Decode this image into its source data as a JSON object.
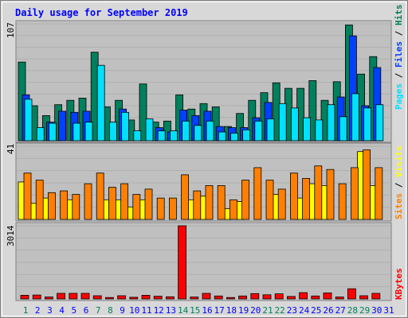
{
  "colors": {
    "hits": "#00805c",
    "files": "#0040ff",
    "pages": "#00e0ff",
    "visits": "#ffff00",
    "sites": "#ff8000",
    "kbytes": "#ff0000",
    "panel_bg": "#c0c0c0",
    "frame_bg": "#d8d8d8",
    "title": "#0000ff",
    "weekend_label": "#00805c",
    "weekday_label": "#0000ff"
  },
  "chart_data": [
    {
      "type": "bar",
      "title": "Daily usage for September 2019",
      "panel": "hits-files-pages",
      "ylim": [
        0,
        107
      ],
      "ymax_label": "107",
      "categories": [
        "1",
        "2",
        "3",
        "4",
        "5",
        "6",
        "7",
        "8",
        "9",
        "10",
        "11",
        "12",
        "13",
        "14",
        "15",
        "16",
        "17",
        "18",
        "19",
        "20",
        "21",
        "22",
        "23",
        "24",
        "25",
        "26",
        "27",
        "28",
        "29",
        "30",
        "31"
      ],
      "series": [
        {
          "name": "Hits",
          "color": "hits",
          "values": [
            72,
            32,
            23,
            33,
            37,
            39,
            81,
            31,
            37,
            19,
            52,
            17,
            18,
            42,
            29,
            34,
            31,
            13,
            25,
            37,
            44,
            53,
            48,
            48,
            55,
            37,
            54,
            106,
            61,
            77,
            0
          ]
        },
        {
          "name": "Files",
          "color": "files",
          "values": [
            42,
            0,
            17,
            27,
            26,
            27,
            0,
            0,
            29,
            0,
            0,
            12,
            8,
            28,
            23,
            27,
            13,
            12,
            12,
            21,
            35,
            0,
            0,
            0,
            0,
            0,
            40,
            96,
            32,
            67,
            0
          ]
        },
        {
          "name": "Pages",
          "color": "pages",
          "values": [
            38,
            12,
            16,
            0,
            16,
            17,
            69,
            17,
            26,
            9,
            20,
            9,
            9,
            18,
            14,
            18,
            8,
            7,
            10,
            18,
            20,
            34,
            30,
            21,
            19,
            33,
            22,
            43,
            30,
            33,
            0
          ]
        }
      ]
    },
    {
      "type": "bar",
      "panel": "visits-sites",
      "ylim": [
        0,
        41
      ],
      "ymax_label": "41",
      "categories": [
        "1",
        "2",
        "3",
        "4",
        "5",
        "6",
        "7",
        "8",
        "9",
        "10",
        "11",
        "12",
        "13",
        "14",
        "15",
        "16",
        "17",
        "18",
        "19",
        "20",
        "21",
        "22",
        "23",
        "24",
        "25",
        "26",
        "27",
        "28",
        "29",
        "30",
        "31"
      ],
      "series": [
        {
          "name": "Visits",
          "color": "visits",
          "values": [
            21,
            9,
            12,
            0,
            11,
            0,
            0,
            11,
            11,
            7,
            11,
            0,
            0,
            0,
            11,
            13,
            0,
            6,
            10,
            0,
            0,
            14,
            0,
            12,
            20,
            19,
            0,
            0,
            38,
            19,
            0
          ]
        },
        {
          "name": "Sites",
          "color": "sites",
          "values": [
            26,
            22,
            15,
            16,
            14,
            20,
            26,
            18,
            20,
            14,
            17,
            12,
            12,
            25,
            16,
            19,
            19,
            11,
            22,
            29,
            22,
            17,
            26,
            23,
            30,
            28,
            20,
            29,
            39,
            29,
            0
          ]
        }
      ]
    },
    {
      "type": "bar",
      "panel": "kbytes",
      "ylim": [
        0,
        3014
      ],
      "ymax_label": "3014",
      "categories": [
        "1",
        "2",
        "3",
        "4",
        "5",
        "6",
        "7",
        "8",
        "9",
        "10",
        "11",
        "12",
        "13",
        "14",
        "15",
        "16",
        "17",
        "18",
        "19",
        "20",
        "21",
        "22",
        "23",
        "24",
        "25",
        "26",
        "27",
        "28",
        "29",
        "30",
        "31"
      ],
      "series": [
        {
          "name": "KBytes",
          "color": "kbytes",
          "values": [
            150,
            160,
            80,
            230,
            230,
            230,
            130,
            60,
            130,
            70,
            150,
            110,
            90,
            3014,
            80,
            230,
            120,
            60,
            120,
            220,
            170,
            210,
            100,
            260,
            120,
            250,
            80,
            420,
            130,
            230,
            0
          ]
        }
      ]
    }
  ],
  "labels": {
    "title": "Daily usage for September 2019",
    "legend_top": [
      "Pages",
      "Files",
      "Hits"
    ],
    "legend_mid": [
      "Sites",
      "Visits"
    ],
    "legend_bot": [
      "KBytes"
    ],
    "separator": "/",
    "ymax_top": "107",
    "ymax_mid": "41",
    "ymax_bot": "3014"
  },
  "x_days": [
    "1",
    "2",
    "3",
    "4",
    "5",
    "6",
    "7",
    "8",
    "9",
    "10",
    "11",
    "12",
    "13",
    "14",
    "15",
    "16",
    "17",
    "18",
    "19",
    "20",
    "21",
    "22",
    "23",
    "24",
    "25",
    "26",
    "27",
    "28",
    "29",
    "30",
    "31"
  ],
  "weekend_days": [
    "1",
    "7",
    "8",
    "14",
    "15",
    "21",
    "22",
    "28",
    "29"
  ]
}
